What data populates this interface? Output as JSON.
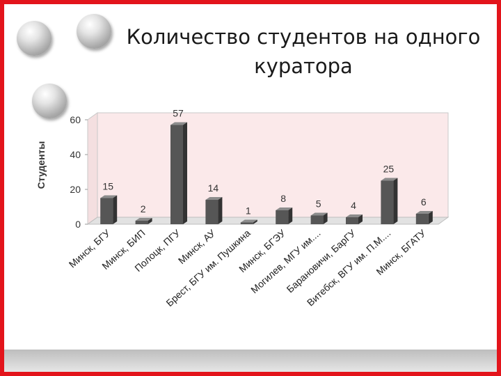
{
  "slide": {
    "title_line1": "Количество студентов на одного",
    "title_line2": "куратора",
    "frame_color": "#e3141b"
  },
  "chart_data": {
    "type": "bar",
    "title": "Количество студентов на одного куратора",
    "ylabel": "Студенты",
    "xlabel": "",
    "ylim": [
      0,
      60
    ],
    "yticks": [
      0,
      20,
      40,
      60
    ],
    "grid": false,
    "legend": "none",
    "bar_color": "#555555",
    "wall_color": "#fbe9ea",
    "categories": [
      "Минск, БГУ",
      "Минск, БИП",
      "Полоцк, ПГУ",
      "Минск, АУ",
      "Брест, БГУ им. Пушкина",
      "Минск, БГЭУ",
      "Могилев, МГУ им....",
      "Барановичи, БарГУ",
      "Витебск, ВГУ им. П.М....",
      "Минск, БГАТУ"
    ],
    "values": [
      15,
      2,
      57,
      14,
      1,
      8,
      5,
      4,
      25,
      6
    ]
  }
}
